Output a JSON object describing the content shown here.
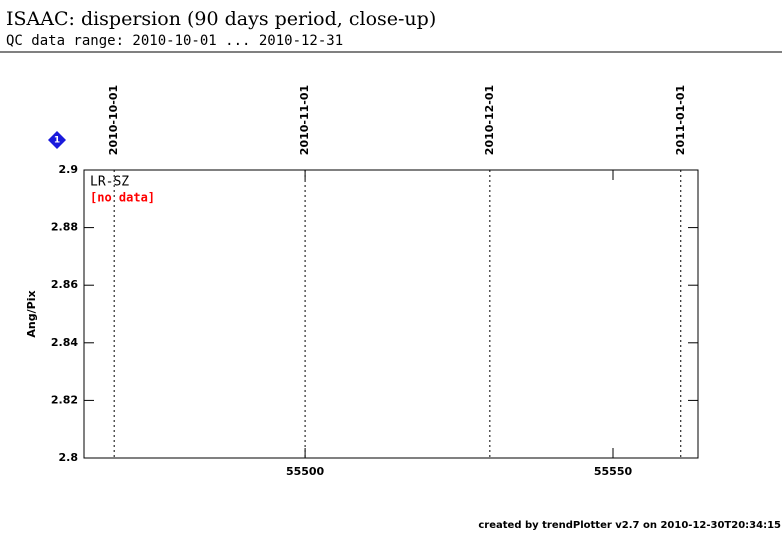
{
  "chart_data": {
    "type": "scatter",
    "title": "ISAAC: dispersion (90 days period, close-up)",
    "subtitle": "QC data range: 2010-10-01 ... 2010-12-31",
    "ylabel": "Ang/Pix",
    "badge": "1",
    "panel_label": "LR-SZ",
    "status": "[no data]",
    "status_color": "#ff0000",
    "footer": "created by trendPlotter v2.7 on 2010-12-30T20:34:15",
    "x": [],
    "values": [],
    "xlim": [
      55464.1,
      55563.8
    ],
    "xticks": [
      55500,
      55550
    ],
    "ylim": [
      2.8,
      2.9
    ],
    "yticks": [
      2.8,
      2.82,
      2.84,
      2.86,
      2.88,
      2.9
    ],
    "date_markers": [
      {
        "x": 55469,
        "label": "2010-10-01"
      },
      {
        "x": 55500,
        "label": "2010-11-01"
      },
      {
        "x": 55530,
        "label": "2010-12-01"
      },
      {
        "x": 55561,
        "label": "2011-01-01"
      }
    ]
  }
}
